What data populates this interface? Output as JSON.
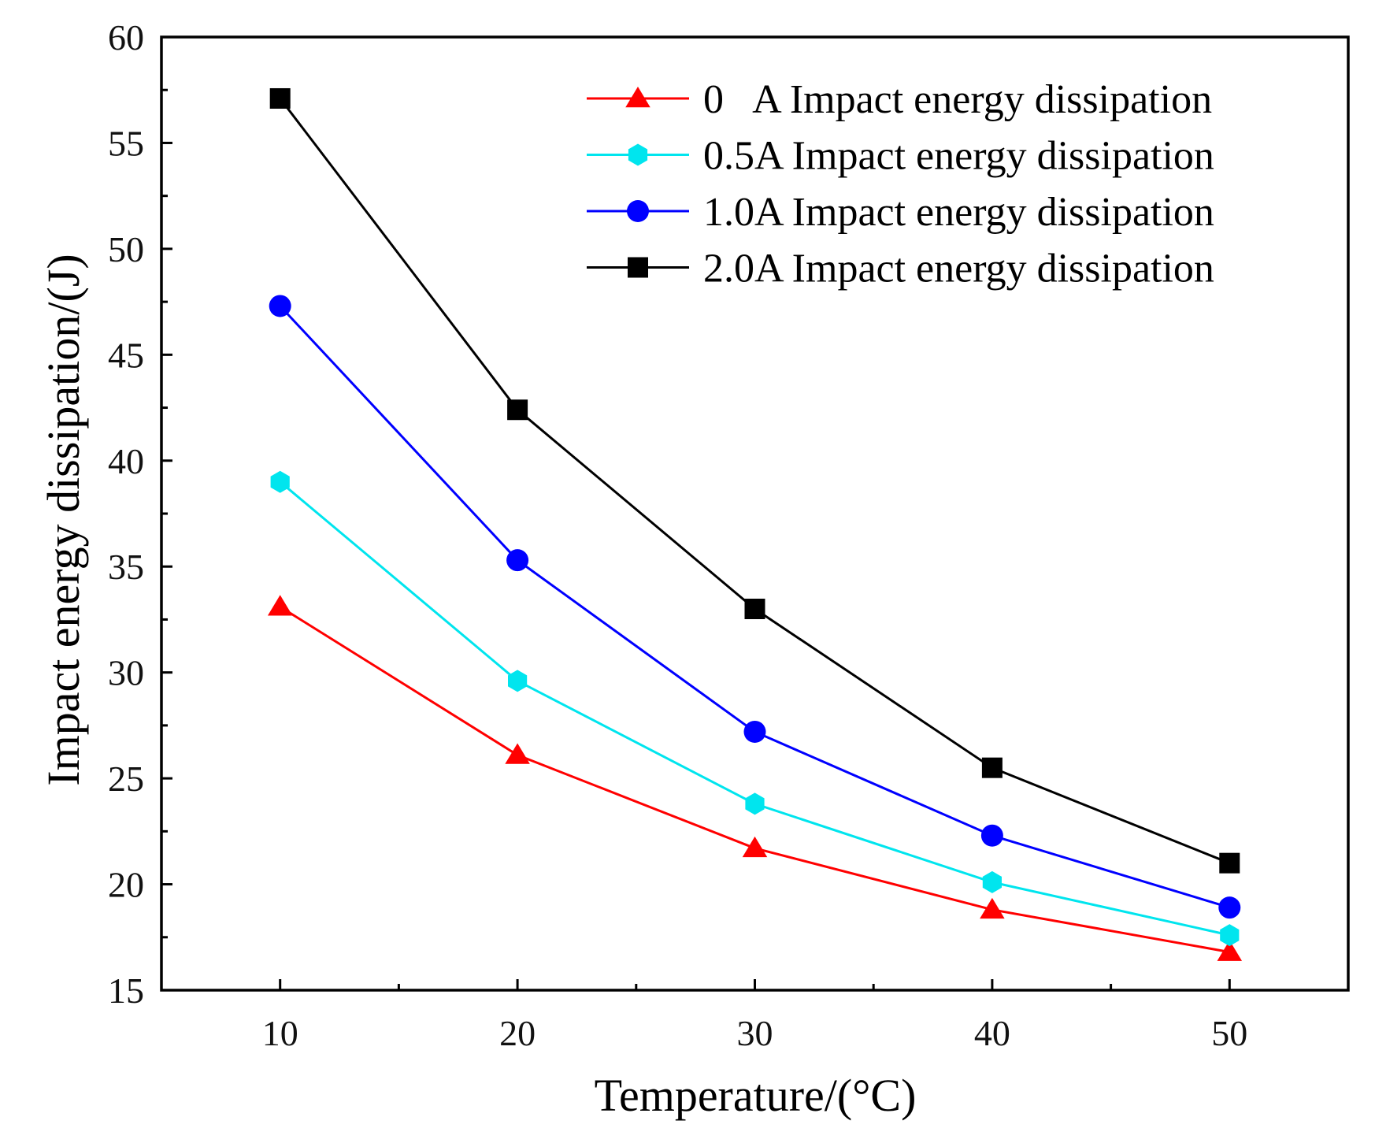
{
  "chart_data": {
    "type": "line",
    "title": "",
    "xlabel": "Temperature/(°C)",
    "ylabel": "Impact energy dissipation/(J)",
    "x": [
      10,
      20,
      30,
      40,
      50
    ],
    "xlim": [
      5,
      55
    ],
    "ylim": [
      15,
      60
    ],
    "xticks": [
      10,
      20,
      30,
      40,
      50
    ],
    "xtick_labels": [
      "10",
      "20",
      "30",
      "40",
      "50"
    ],
    "yticks": [
      15,
      20,
      25,
      30,
      35,
      40,
      45,
      50,
      55,
      60
    ],
    "ytick_labels": [
      "15",
      "20",
      "25",
      "30",
      "35",
      "40",
      "45",
      "50",
      "55",
      "60"
    ],
    "grid": false,
    "legend_position": "top-right",
    "series": [
      {
        "name": "0 A Impact energy dissipation",
        "legend_label": "0   A Impact energy dissipation",
        "color": "#ff0000",
        "marker": "triangle",
        "values": [
          33.1,
          26.1,
          21.7,
          18.8,
          16.8
        ]
      },
      {
        "name": "0.5A Impact energy dissipation",
        "legend_label": "0.5A Impact energy dissipation",
        "color": "#00e5ee",
        "marker": "hexagon",
        "values": [
          39.0,
          29.6,
          23.8,
          20.1,
          17.6
        ]
      },
      {
        "name": "1.0A Impact energy dissipation",
        "legend_label": "1.0A Impact energy dissipation",
        "color": "#0000ff",
        "marker": "circle",
        "values": [
          47.3,
          35.3,
          27.2,
          22.3,
          18.9
        ]
      },
      {
        "name": "2.0A Impact energy dissipation",
        "legend_label": "2.0A Impact energy dissipation",
        "color": "#000000",
        "marker": "square",
        "values": [
          57.1,
          42.4,
          33.0,
          25.5,
          21.0
        ]
      }
    ]
  }
}
